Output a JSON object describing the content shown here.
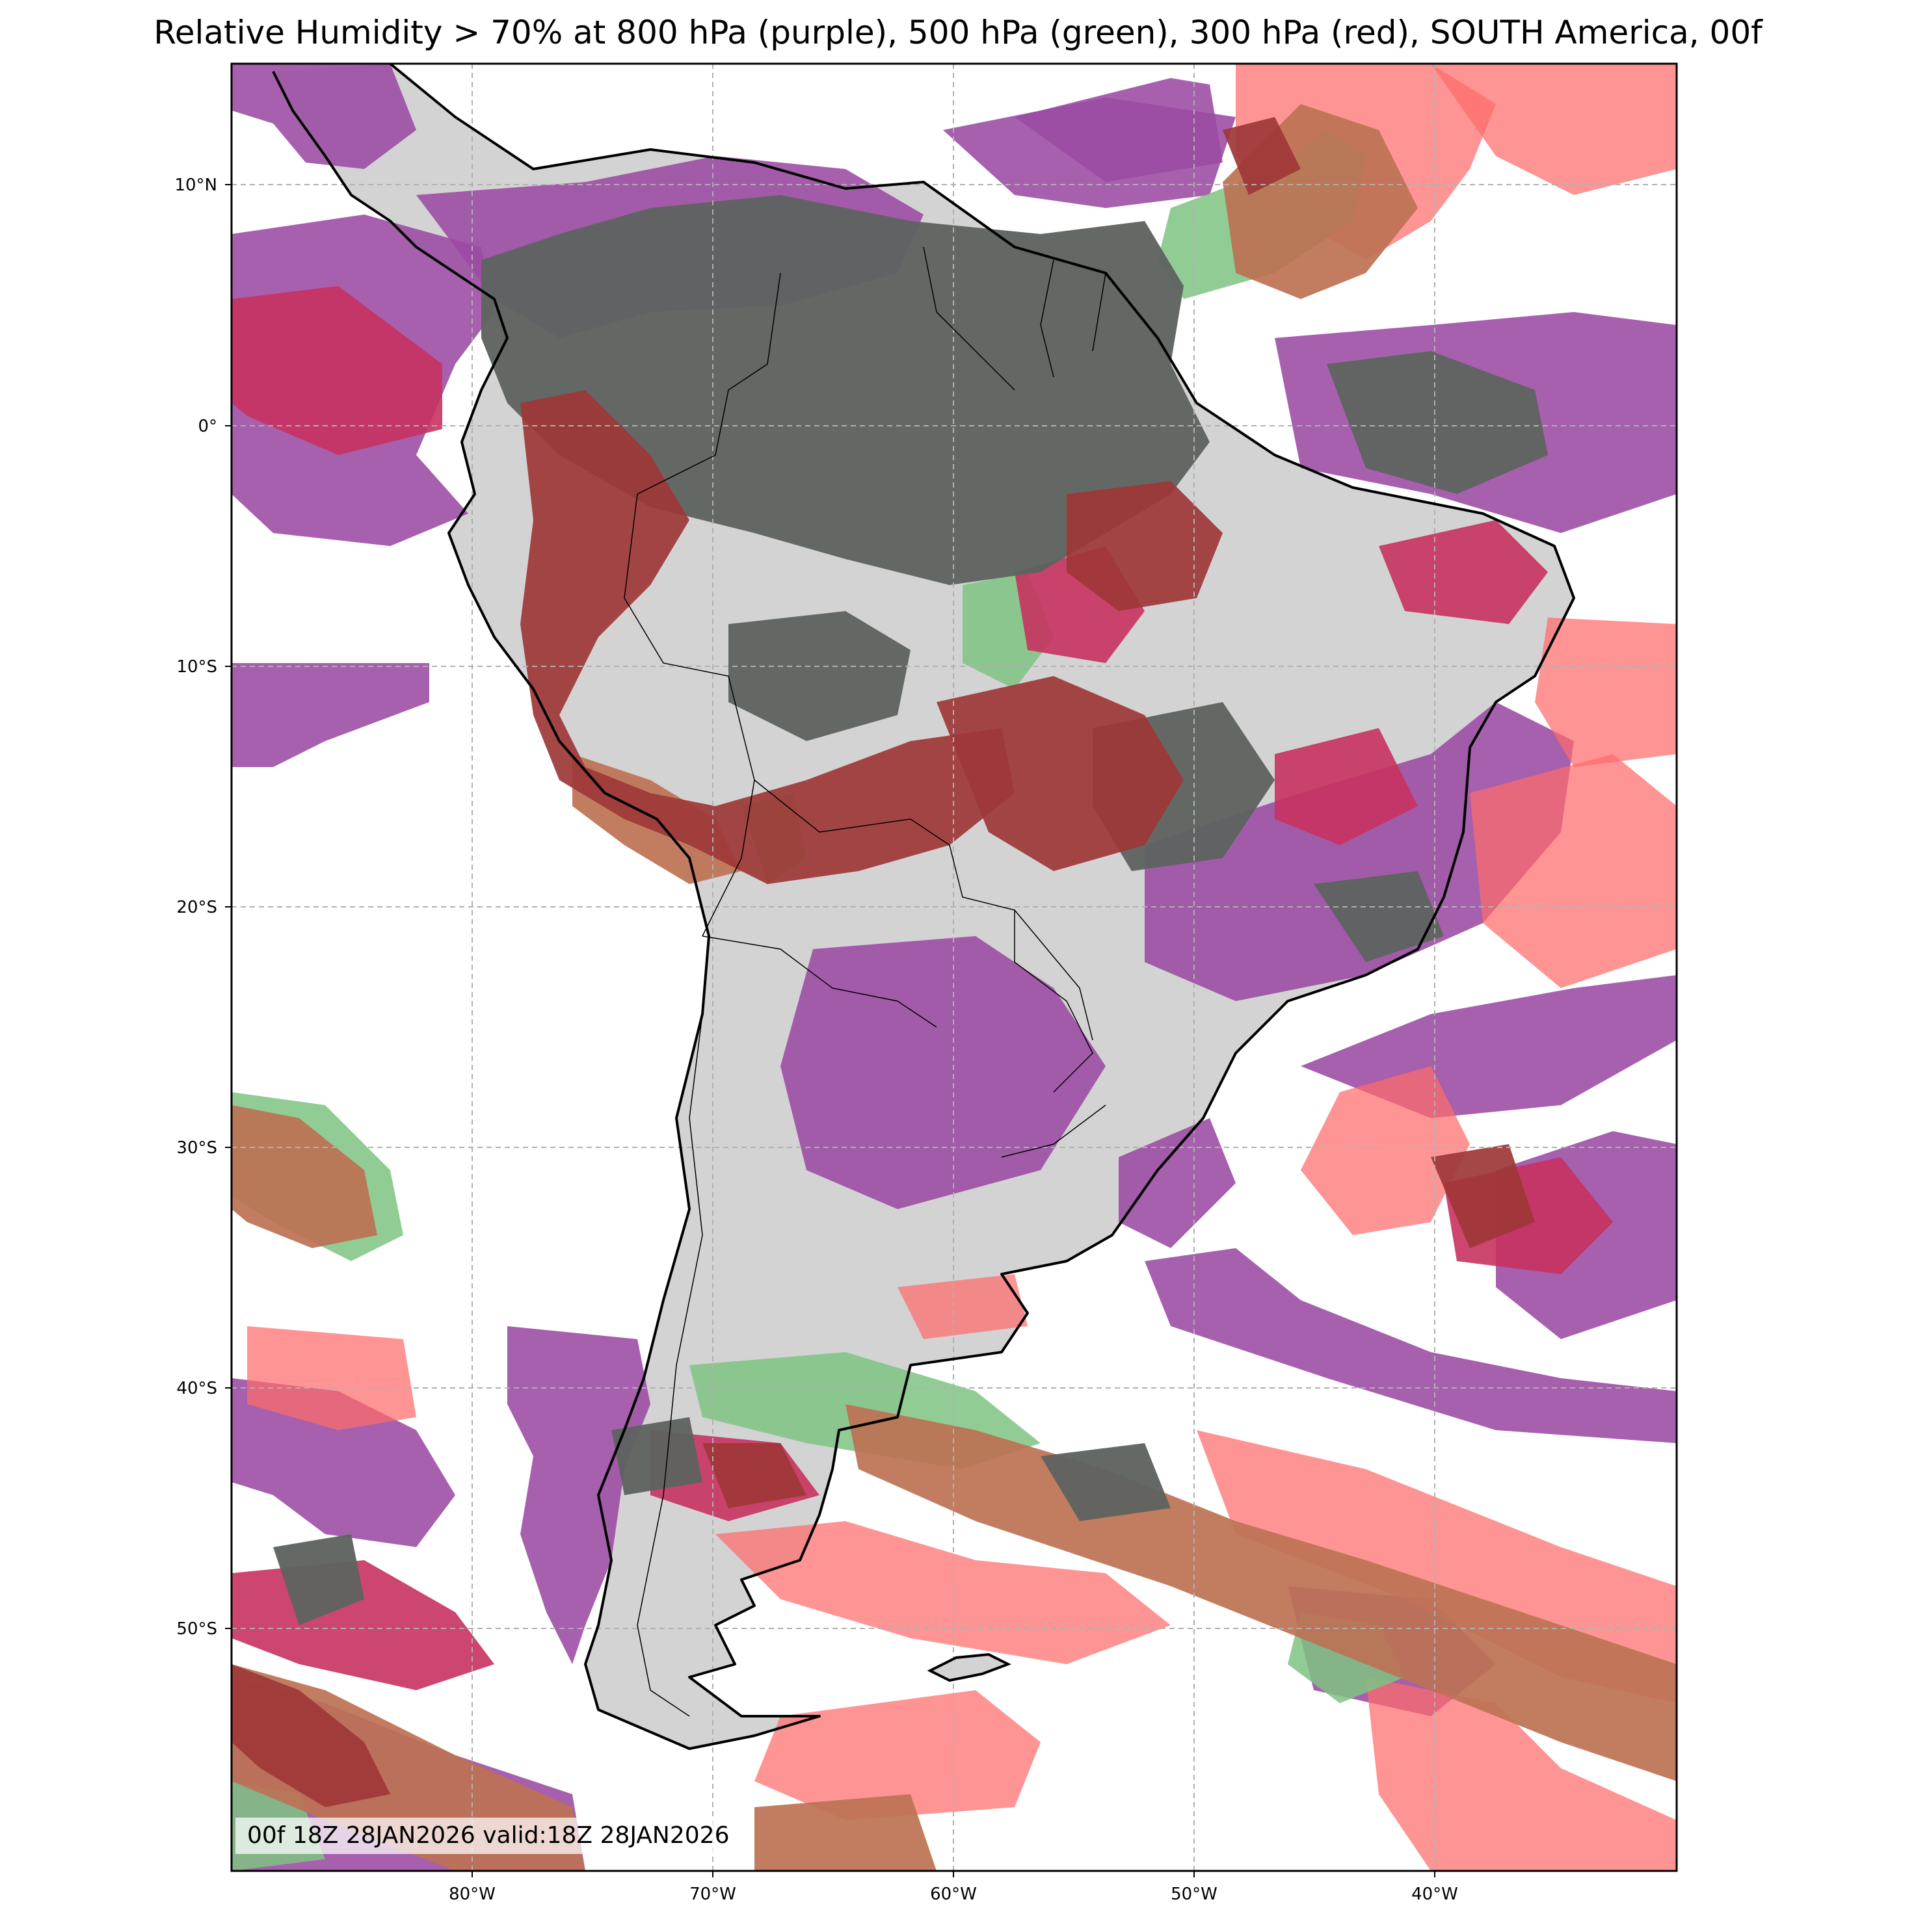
{
  "title": "Relative Humidity > 70% at 800 hPa (purple), 500 hPa (green), 300 hPa (red), SOUTH America, 00f",
  "stamp": "00f 18Z 28JAN2026 valid:18Z 28JAN2026",
  "axes": {
    "lat_ticks": [
      "10°N",
      "0°",
      "10°S",
      "20°S",
      "30°S",
      "40°S",
      "50°S"
    ],
    "lon_ticks": [
      "80°W",
      "70°W",
      "60°W",
      "50°W",
      "40°W"
    ]
  },
  "layers": [
    {
      "level": "800 hPa",
      "color_name": "purple",
      "color": "#9b4aa3"
    },
    {
      "level": "500 hPa",
      "color_name": "green",
      "color": "#7fc383"
    },
    {
      "level": "300 hPa",
      "color_name": "red",
      "color": "#ff6b6b"
    }
  ],
  "colors": {
    "land": "#d3d3d3",
    "overlap_all": "#5f6360",
    "overlap_800_300": "#c7325f",
    "overlap_500_300": "#bd7254",
    "overlap_dark_red": "#9e3737",
    "coast": "#000000",
    "grid": "#b0b0b0"
  }
}
